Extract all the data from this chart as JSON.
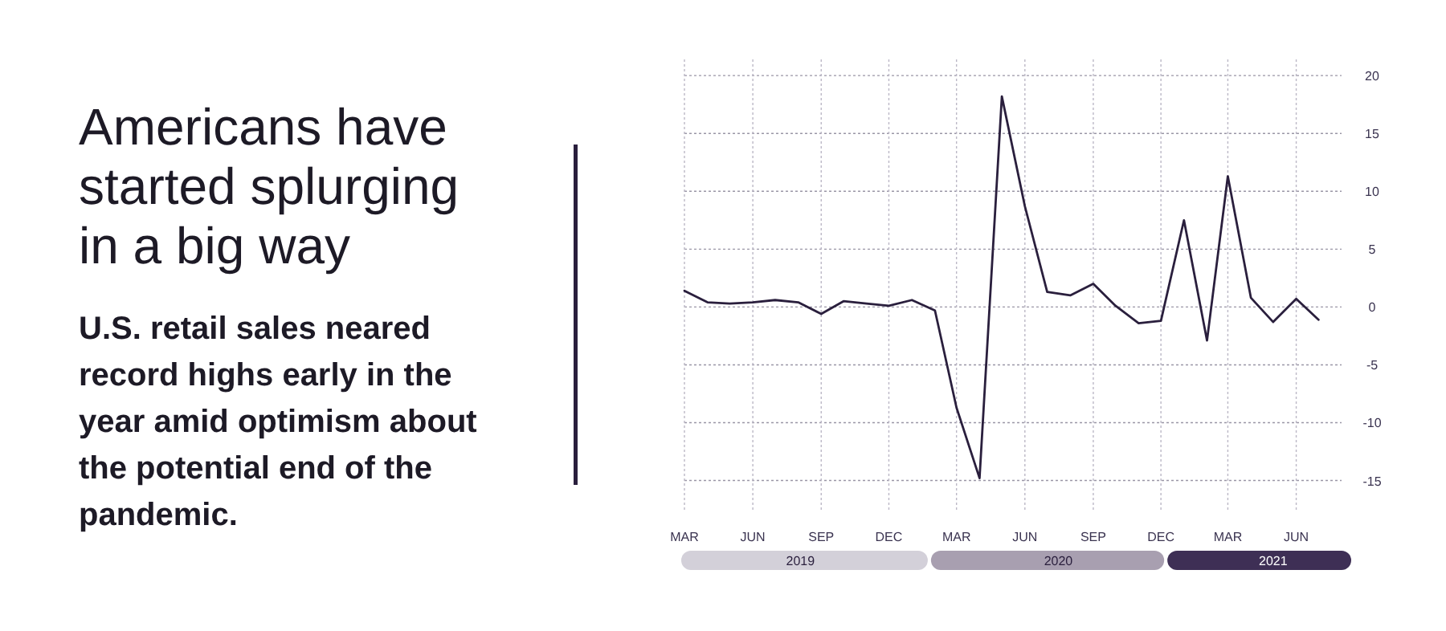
{
  "chart_data": {
    "type": "line",
    "title": "Americans have started splurging in a big way",
    "subtitle": "U.S. retail sales neared record highs early in the year amid optimism about the potential end of the pandemic.",
    "x": [
      "2019-03",
      "2019-04",
      "2019-05",
      "2019-06",
      "2019-07",
      "2019-08",
      "2019-09",
      "2019-10",
      "2019-11",
      "2019-12",
      "2020-01",
      "2020-02",
      "2020-03",
      "2020-04",
      "2020-05",
      "2020-06",
      "2020-07",
      "2020-08",
      "2020-09",
      "2020-10",
      "2020-11",
      "2020-12",
      "2021-01",
      "2021-02",
      "2021-03",
      "2021-04",
      "2021-05",
      "2021-06",
      "2021-07"
    ],
    "series": [
      {
        "color": "#2a1f3d",
        "values": [
          1.4,
          0.4,
          0.3,
          0.4,
          0.6,
          0.4,
          -0.6,
          0.5,
          0.3,
          0.1,
          0.6,
          -0.3,
          -8.7,
          -14.8,
          18.2,
          8.7,
          1.3,
          1.0,
          2.0,
          0.1,
          -1.4,
          -1.2,
          7.5,
          -2.9,
          11.3,
          0.8,
          -1.3,
          0.7,
          -1.1
        ]
      }
    ],
    "xlim": [
      "2019-03",
      "2021-08"
    ],
    "xticks": [
      {
        "value": "2019-03",
        "label": "MAR"
      },
      {
        "value": "2019-06",
        "label": "JUN"
      },
      {
        "value": "2019-09",
        "label": "SEP"
      },
      {
        "value": "2019-12",
        "label": "DEC"
      },
      {
        "value": "2020-03",
        "label": "MAR"
      },
      {
        "value": "2020-06",
        "label": "JUN"
      },
      {
        "value": "2020-09",
        "label": "SEP"
      },
      {
        "value": "2020-12",
        "label": "DEC"
      },
      {
        "value": "2021-03",
        "label": "MAR"
      },
      {
        "value": "2021-06",
        "label": "JUN"
      }
    ],
    "ylim": [
      -17.6,
      21.4
    ],
    "yticks": [
      -15,
      -10,
      -5,
      0,
      5,
      10,
      15,
      20
    ],
    "x2lim": [
      "2019-03",
      "2021-08"
    ],
    "x2ticks": [
      {
        "value": "2019-08-04",
        "label": "2019"
      },
      {
        "value": "2020-07-16",
        "label": "2020"
      },
      {
        "value": "2021-05-01",
        "label": "2021"
      }
    ],
    "grid": true,
    "marker": "none",
    "line_style": "solid"
  }
}
